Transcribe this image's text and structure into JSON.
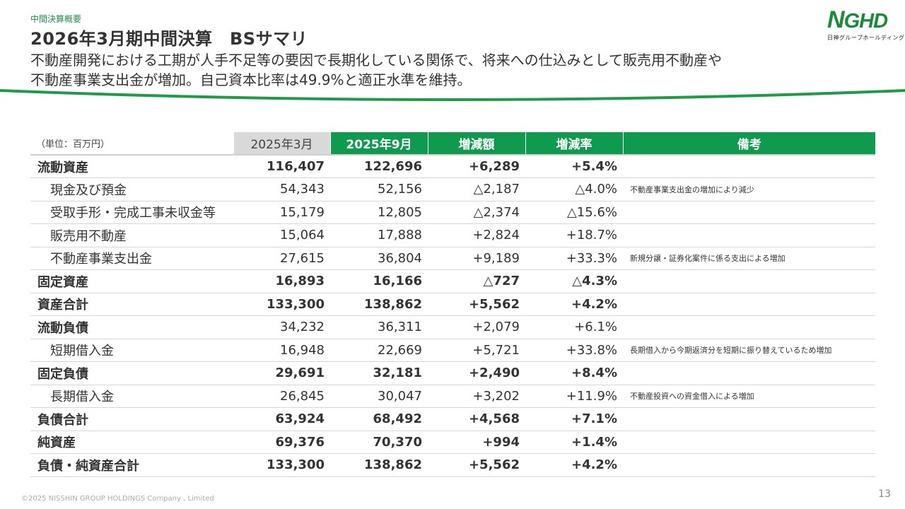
{
  "section_label": "中間決算概要",
  "title": "2026年3月期中間決算　BSサマリ",
  "subtitle_lines": [
    "不動産開発における工期が人手不足等の要因で長期化している関係で、将来への仕込みとして販売用不動産や",
    "不動産事業支出金が増加。自己資本比率は49.9%と適正水準を維持。"
  ],
  "logo": {
    "n": "N",
    "ghd": "GHD",
    "sub": "日神グループホールディングス",
    "color": "#1a8a3a"
  },
  "accent_color": "#0f9a4f",
  "table": {
    "headers": {
      "unit": "（単位：百万円）",
      "prev": "2025年3月",
      "curr": "2025年9月",
      "diff": "増減額",
      "rate": "増減率",
      "note": "備考"
    },
    "rows": [
      {
        "label": "流動資産",
        "prev": "116,407",
        "curr": "122,696",
        "diff": "+6,289",
        "rate": "+5.4%",
        "note": ""
      },
      {
        "label": "現金及び預金",
        "prev": "54,343",
        "curr": "52,156",
        "diff": "△2,187",
        "rate": "△4.0%",
        "note": "不動産事業支出金の増加により減少"
      },
      {
        "label": "受取手形・完成工事未収金等",
        "prev": "15,179",
        "curr": "12,805",
        "diff": "△2,374",
        "rate": "△15.6%",
        "note": ""
      },
      {
        "label": "販売用不動産",
        "prev": "15,064",
        "curr": "17,888",
        "diff": "+2,824",
        "rate": "+18.7%",
        "note": ""
      },
      {
        "label": "不動産事業支出金",
        "prev": "27,615",
        "curr": "36,804",
        "diff": "+9,189",
        "rate": "+33.3%",
        "note": "新規分譲・証券化案件に係る支出による増加"
      },
      {
        "label": "固定資産",
        "prev": "16,893",
        "curr": "16,166",
        "diff": "△727",
        "rate": "△4.3%",
        "note": ""
      },
      {
        "label": "資産合計",
        "prev": "133,300",
        "curr": "138,862",
        "diff": "+5,562",
        "rate": "+4.2%",
        "note": ""
      },
      {
        "label": "流動負債",
        "prev": "34,232",
        "curr": "36,311",
        "diff": "+2,079",
        "rate": "+6.1%",
        "note": ""
      },
      {
        "label": "短期借入金",
        "prev": "16,948",
        "curr": "22,669",
        "diff": "+5,721",
        "rate": "+33.8%",
        "note": "長期借入から今期返済分を短期に振り替えているため増加"
      },
      {
        "label": "固定負債",
        "prev": "29,691",
        "curr": "32,181",
        "diff": "+2,490",
        "rate": "+8.4%",
        "note": ""
      },
      {
        "label": "長期借入金",
        "prev": "26,845",
        "curr": "30,047",
        "diff": "+3,202",
        "rate": "+11.9%",
        "note": "不動産投資への資金借入による増加"
      },
      {
        "label": "負債合計",
        "prev": "63,924",
        "curr": "68,492",
        "diff": "+4,568",
        "rate": "+7.1%",
        "note": ""
      },
      {
        "label": "純資産",
        "prev": "69,376",
        "curr": "70,370",
        "diff": "+994",
        "rate": "+1.4%",
        "note": ""
      },
      {
        "label": "負債・純資産合計",
        "prev": "133,300",
        "curr": "138,862",
        "diff": "+5,562",
        "rate": "+4.2%",
        "note": ""
      }
    ]
  },
  "footer": "©2025 NISSHIN GROUP HOLDINGS Company , Limited",
  "page_number": "13"
}
